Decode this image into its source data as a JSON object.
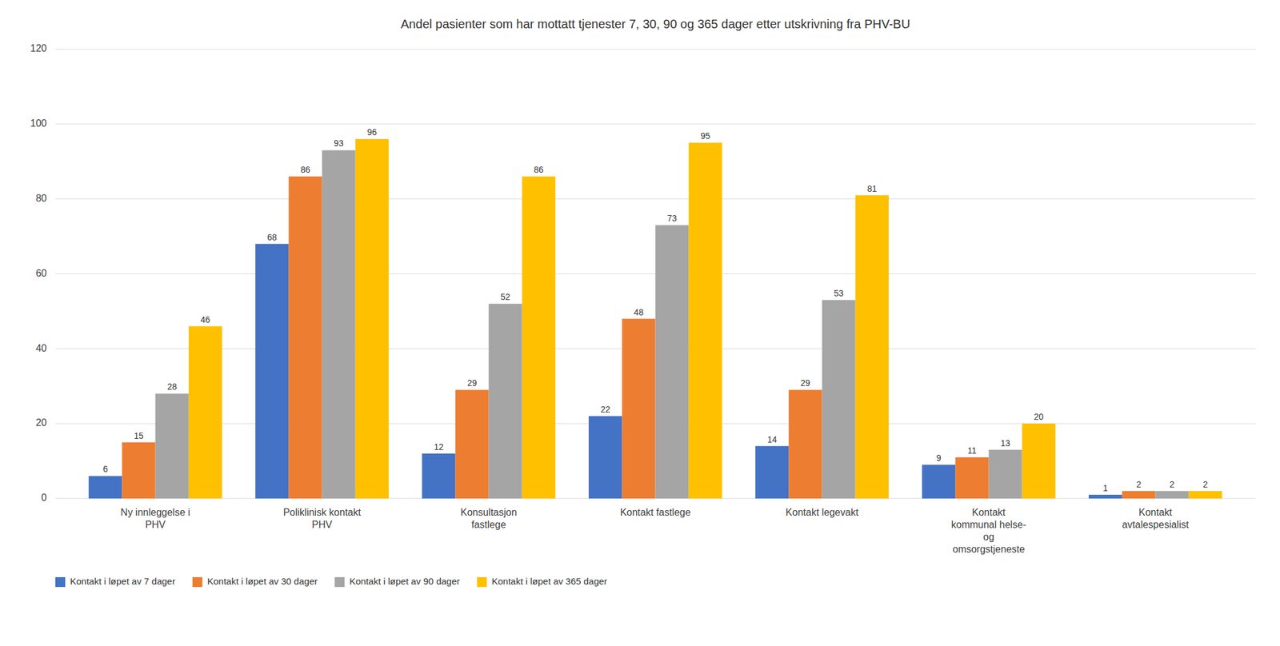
{
  "chart_data": {
    "type": "bar",
    "title": "Andel pasienter som har mottatt tjenester 7, 30, 90 og 365 dager etter utskrivning fra PHV-BU",
    "categories": [
      "Ny innleggelse i\nPHV",
      "Poliklinisk kontakt\nPHV",
      "Konsultasjon\nfastlege",
      "Kontakt fastlege",
      "Kontakt legevakt",
      "Kontakt\nkommunal helse-\nog\nomsorgstjeneste",
      "Kontakt\navtalespesialist"
    ],
    "series": [
      {
        "name": "Kontakt i løpet av 7 dager",
        "color": "#4472C4",
        "values": [
          6,
          68,
          12,
          22,
          14,
          9,
          1
        ]
      },
      {
        "name": "Kontakt i løpet av 30 dager",
        "color": "#ED7D31",
        "values": [
          15,
          86,
          29,
          48,
          29,
          11,
          2
        ]
      },
      {
        "name": "Kontakt i løpet av 90 dager",
        "color": "#A5A5A5",
        "values": [
          28,
          93,
          52,
          73,
          53,
          13,
          2
        ]
      },
      {
        "name": "Kontakt i løpet av 365 dager",
        "color": "#FFC000",
        "values": [
          46,
          96,
          86,
          95,
          81,
          20,
          2
        ]
      }
    ],
    "ylim": [
      0,
      120
    ],
    "yticks": [
      0,
      20,
      40,
      60,
      80,
      100,
      120
    ],
    "grid": true,
    "data_labels": true,
    "legend": "lower left"
  }
}
